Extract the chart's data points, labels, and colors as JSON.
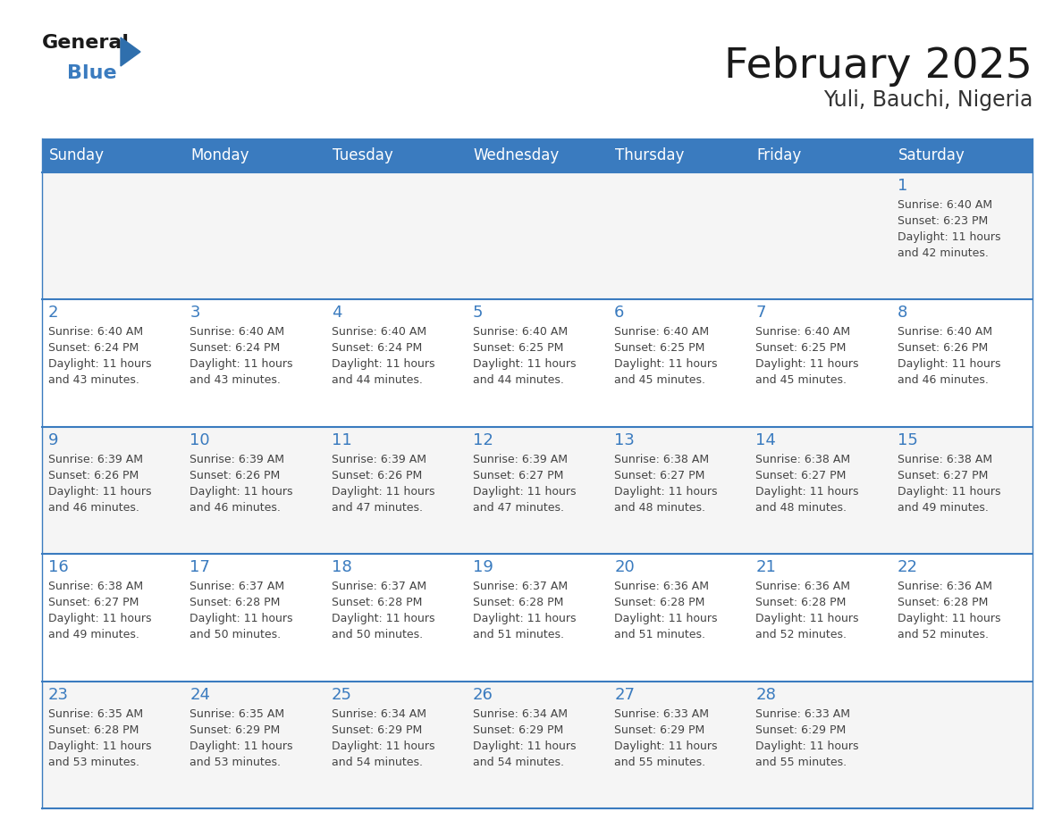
{
  "title": "February 2025",
  "subtitle": "Yuli, Bauchi, Nigeria",
  "days_of_week": [
    "Sunday",
    "Monday",
    "Tuesday",
    "Wednesday",
    "Thursday",
    "Friday",
    "Saturday"
  ],
  "header_color": "#3a7bbf",
  "header_text_color": "#ffffff",
  "border_color": "#3a7bbf",
  "day_num_color": "#3a7bbf",
  "text_color": "#444444",
  "title_color": "#1a1a1a",
  "subtitle_color": "#333333",
  "row_colors": [
    "#f5f5f5",
    "#ffffff",
    "#f5f5f5",
    "#ffffff",
    "#f5f5f5"
  ],
  "calendar": [
    [
      null,
      null,
      null,
      null,
      null,
      null,
      {
        "day": 1,
        "sunrise": "6:40 AM",
        "sunset": "6:23 PM",
        "daylight": "11 hours and 42 minutes."
      }
    ],
    [
      {
        "day": 2,
        "sunrise": "6:40 AM",
        "sunset": "6:24 PM",
        "daylight": "11 hours and 43 minutes."
      },
      {
        "day": 3,
        "sunrise": "6:40 AM",
        "sunset": "6:24 PM",
        "daylight": "11 hours and 43 minutes."
      },
      {
        "day": 4,
        "sunrise": "6:40 AM",
        "sunset": "6:24 PM",
        "daylight": "11 hours and 44 minutes."
      },
      {
        "day": 5,
        "sunrise": "6:40 AM",
        "sunset": "6:25 PM",
        "daylight": "11 hours and 44 minutes."
      },
      {
        "day": 6,
        "sunrise": "6:40 AM",
        "sunset": "6:25 PM",
        "daylight": "11 hours and 45 minutes."
      },
      {
        "day": 7,
        "sunrise": "6:40 AM",
        "sunset": "6:25 PM",
        "daylight": "11 hours and 45 minutes."
      },
      {
        "day": 8,
        "sunrise": "6:40 AM",
        "sunset": "6:26 PM",
        "daylight": "11 hours and 46 minutes."
      }
    ],
    [
      {
        "day": 9,
        "sunrise": "6:39 AM",
        "sunset": "6:26 PM",
        "daylight": "11 hours and 46 minutes."
      },
      {
        "day": 10,
        "sunrise": "6:39 AM",
        "sunset": "6:26 PM",
        "daylight": "11 hours and 46 minutes."
      },
      {
        "day": 11,
        "sunrise": "6:39 AM",
        "sunset": "6:26 PM",
        "daylight": "11 hours and 47 minutes."
      },
      {
        "day": 12,
        "sunrise": "6:39 AM",
        "sunset": "6:27 PM",
        "daylight": "11 hours and 47 minutes."
      },
      {
        "day": 13,
        "sunrise": "6:38 AM",
        "sunset": "6:27 PM",
        "daylight": "11 hours and 48 minutes."
      },
      {
        "day": 14,
        "sunrise": "6:38 AM",
        "sunset": "6:27 PM",
        "daylight": "11 hours and 48 minutes."
      },
      {
        "day": 15,
        "sunrise": "6:38 AM",
        "sunset": "6:27 PM",
        "daylight": "11 hours and 49 minutes."
      }
    ],
    [
      {
        "day": 16,
        "sunrise": "6:38 AM",
        "sunset": "6:27 PM",
        "daylight": "11 hours and 49 minutes."
      },
      {
        "day": 17,
        "sunrise": "6:37 AM",
        "sunset": "6:28 PM",
        "daylight": "11 hours and 50 minutes."
      },
      {
        "day": 18,
        "sunrise": "6:37 AM",
        "sunset": "6:28 PM",
        "daylight": "11 hours and 50 minutes."
      },
      {
        "day": 19,
        "sunrise": "6:37 AM",
        "sunset": "6:28 PM",
        "daylight": "11 hours and 51 minutes."
      },
      {
        "day": 20,
        "sunrise": "6:36 AM",
        "sunset": "6:28 PM",
        "daylight": "11 hours and 51 minutes."
      },
      {
        "day": 21,
        "sunrise": "6:36 AM",
        "sunset": "6:28 PM",
        "daylight": "11 hours and 52 minutes."
      },
      {
        "day": 22,
        "sunrise": "6:36 AM",
        "sunset": "6:28 PM",
        "daylight": "11 hours and 52 minutes."
      }
    ],
    [
      {
        "day": 23,
        "sunrise": "6:35 AM",
        "sunset": "6:28 PM",
        "daylight": "11 hours and 53 minutes."
      },
      {
        "day": 24,
        "sunrise": "6:35 AM",
        "sunset": "6:29 PM",
        "daylight": "11 hours and 53 minutes."
      },
      {
        "day": 25,
        "sunrise": "6:34 AM",
        "sunset": "6:29 PM",
        "daylight": "11 hours and 54 minutes."
      },
      {
        "day": 26,
        "sunrise": "6:34 AM",
        "sunset": "6:29 PM",
        "daylight": "11 hours and 54 minutes."
      },
      {
        "day": 27,
        "sunrise": "6:33 AM",
        "sunset": "6:29 PM",
        "daylight": "11 hours and 55 minutes."
      },
      {
        "day": 28,
        "sunrise": "6:33 AM",
        "sunset": "6:29 PM",
        "daylight": "11 hours and 55 minutes."
      },
      null
    ]
  ]
}
